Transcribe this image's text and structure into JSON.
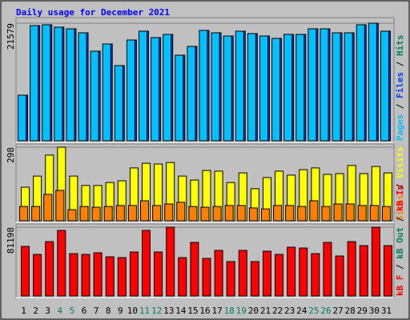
{
  "title": "Daily usage for December 2021",
  "legend_separator": " / ",
  "categories": [
    "1",
    "2",
    "3",
    "4",
    "5",
    "6",
    "7",
    "8",
    "9",
    "10",
    "11",
    "12",
    "13",
    "14",
    "15",
    "16",
    "17",
    "18",
    "19",
    "20",
    "21",
    "22",
    "23",
    "24",
    "25",
    "26",
    "27",
    "28",
    "29",
    "30",
    "31"
  ],
  "category_colors": [
    "#000000",
    "#000000",
    "#000000",
    "#00805c",
    "#00805c",
    "#000000",
    "#000000",
    "#000000",
    "#000000",
    "#000000",
    "#00805c",
    "#00805c",
    "#000000",
    "#000000",
    "#000000",
    "#000000",
    "#000000",
    "#00805c",
    "#00805c",
    "#000000",
    "#000000",
    "#000000",
    "#000000",
    "#000000",
    "#00805c",
    "#00805c",
    "#000000",
    "#000000",
    "#000000",
    "#000000",
    "#000000"
  ],
  "chart_data": [
    {
      "type": "bar",
      "ylim": [
        0,
        21579
      ],
      "yticks": [
        21579
      ],
      "series": [
        {
          "name": "Pages",
          "color": "#00c0ff",
          "values": [
            8368,
            21139,
            21286,
            20846,
            20552,
            19818,
            16442,
            17763,
            13799,
            18497,
            20112,
            18937,
            19524,
            15708,
            17322,
            20258,
            19818,
            19231,
            20112,
            19671,
            19231,
            18790,
            19524,
            19524,
            20552,
            20552,
            19818,
            19818,
            21286,
            21579,
            20112
          ]
        },
        {
          "name": "Files",
          "color": "#0040ff",
          "values": [
            8368,
            21139,
            21286,
            20846,
            20552,
            19818,
            16442,
            17763,
            13799,
            18497,
            20112,
            18937,
            19524,
            15708,
            17322,
            20258,
            19818,
            19231,
            20112,
            19671,
            19231,
            18790,
            19524,
            19524,
            20552,
            20552,
            19818,
            19818,
            21286,
            21579,
            20112
          ]
        },
        {
          "name": "Hits",
          "color": "#00805c",
          "values": [
            null,
            null,
            null,
            null,
            null,
            null,
            null,
            null,
            null,
            null,
            null,
            null,
            null,
            null,
            null,
            null,
            null,
            null,
            null,
            null,
            null,
            null,
            null,
            null,
            null,
            null,
            null,
            null,
            null,
            null,
            null
          ]
        }
      ]
    },
    {
      "type": "bar",
      "ylim": [
        0,
        298
      ],
      "yticks": [
        298
      ],
      "series": [
        {
          "name": "Sites",
          "color": "#ff8000",
          "values": [
            58,
            58,
            107,
            123,
            45,
            58,
            55,
            58,
            62,
            62,
            81,
            62,
            68,
            75,
            58,
            55,
            58,
            62,
            62,
            52,
            48,
            62,
            62,
            58,
            81,
            58,
            68,
            68,
            62,
            62,
            58
          ]
        },
        {
          "name": "Visits",
          "color": "#ffff00",
          "values": [
            136,
            181,
            266,
            298,
            181,
            143,
            143,
            155,
            162,
            214,
            233,
            230,
            236,
            181,
            165,
            204,
            201,
            155,
            194,
            130,
            175,
            201,
            185,
            207,
            214,
            188,
            191,
            224,
            191,
            220,
            194
          ]
        }
      ]
    },
    {
      "type": "bar",
      "ylim": [
        0,
        81198
      ],
      "yticks": [
        81198
      ],
      "series": [
        {
          "name": "kB F",
          "color": "#ff0000",
          "values": [
            null,
            null,
            null,
            null,
            null,
            null,
            null,
            null,
            null,
            null,
            null,
            null,
            null,
            null,
            null,
            null,
            null,
            null,
            null,
            null,
            null,
            null,
            null,
            null,
            null,
            null,
            null,
            null,
            null,
            null,
            null
          ]
        },
        {
          "name": "kB Out",
          "color": "#00805c",
          "values": [
            null,
            null,
            null,
            null,
            null,
            null,
            null,
            null,
            null,
            null,
            null,
            null,
            null,
            null,
            null,
            null,
            null,
            null,
            null,
            null,
            null,
            null,
            null,
            null,
            null,
            null,
            null,
            null,
            null,
            null,
            null
          ]
        },
        {
          "name": "kB In",
          "color": "#ff0000",
          "values": [
            58528,
            49088,
            64192,
            77408,
            50032,
            49088,
            50976,
            46256,
            45312,
            51920,
            77408,
            51920,
            81198,
            45312,
            63248,
            44368,
            53808,
            40592,
            53808,
            40592,
            52864,
            49088,
            57584,
            56640,
            50032,
            63248,
            47200,
            64192,
            59472,
            81198,
            59472
          ]
        }
      ]
    }
  ]
}
